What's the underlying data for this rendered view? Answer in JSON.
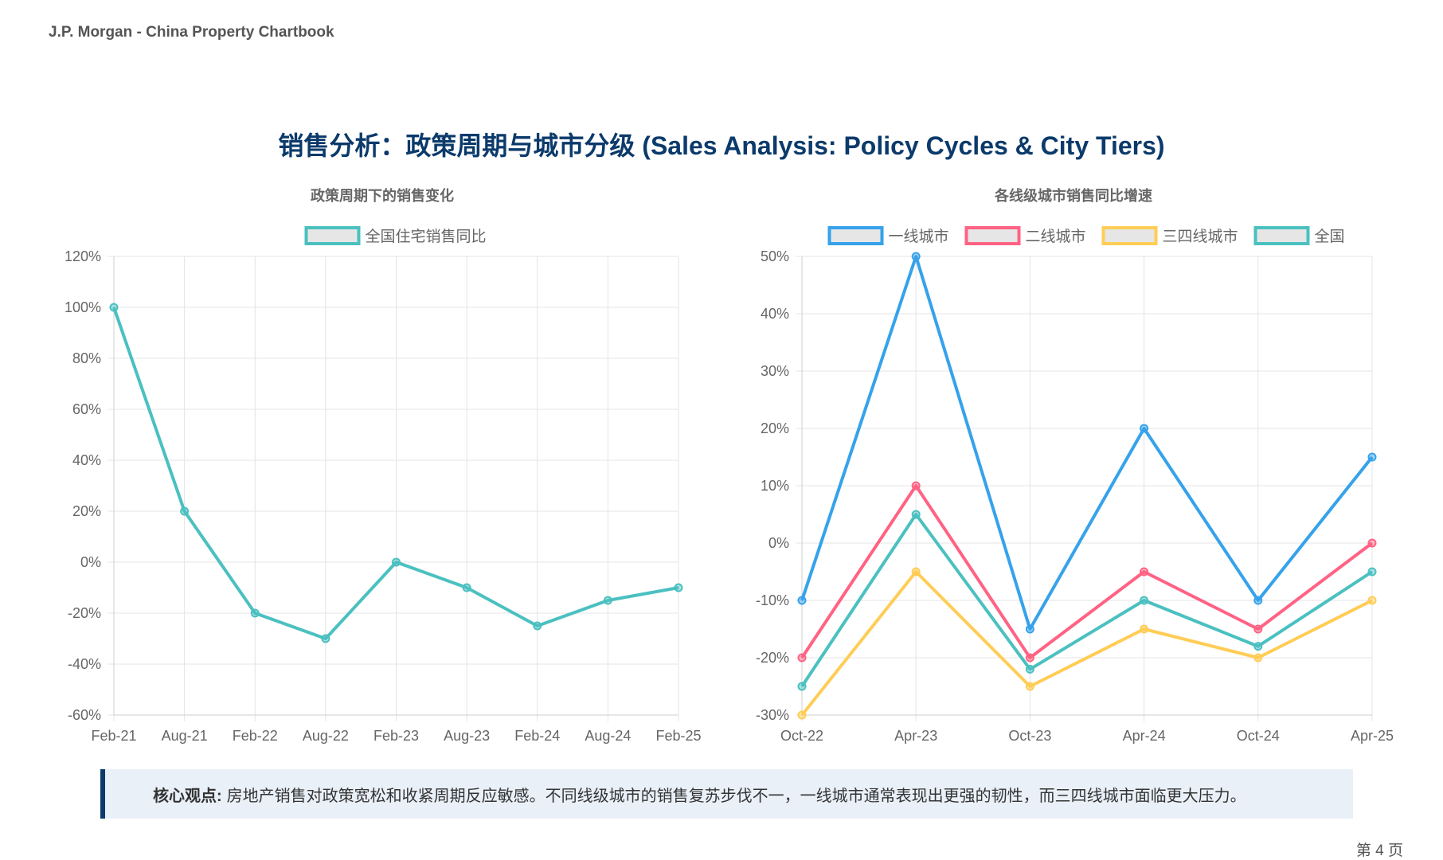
{
  "header": {
    "brand": "J.P. Morgan - China Property Chartbook"
  },
  "main_title": "销售分析：政策周期与城市分级 (Sales Analysis: Policy Cycles & City Tiers)",
  "chart_data": [
    {
      "type": "line",
      "title": "政策周期下的销售变化",
      "categories": [
        "Feb-21",
        "Aug-21",
        "Feb-22",
        "Aug-22",
        "Feb-23",
        "Aug-23",
        "Feb-24",
        "Aug-24",
        "Feb-25"
      ],
      "series": [
        {
          "name": "全国住宅销售同比",
          "color": "#4bc0c0",
          "values": [
            100,
            20,
            -20,
            -30,
            0,
            -10,
            -25,
            -15,
            -10
          ]
        }
      ],
      "ylim": [
        -60,
        120
      ],
      "yticks": [
        120,
        100,
        80,
        60,
        40,
        20,
        0,
        -20,
        -40,
        -60
      ],
      "y_unit": "%",
      "grid": true,
      "legend": "top"
    },
    {
      "type": "line",
      "title": "各线级城市销售同比增速",
      "categories": [
        "Oct-22",
        "Apr-23",
        "Oct-23",
        "Apr-24",
        "Oct-24",
        "Apr-25"
      ],
      "series": [
        {
          "name": "一线城市",
          "color": "#36a2eb",
          "values": [
            -10,
            50,
            -15,
            20,
            -10,
            15
          ]
        },
        {
          "name": "二线城市",
          "color": "#ff6384",
          "values": [
            -20,
            10,
            -20,
            -5,
            -15,
            0
          ]
        },
        {
          "name": "三四线城市",
          "color": "#ffcd56",
          "values": [
            -30,
            -5,
            -25,
            -15,
            -20,
            -10
          ]
        },
        {
          "name": "全国",
          "color": "#4bc0c0",
          "values": [
            -25,
            5,
            -22,
            -10,
            -18,
            -5
          ]
        }
      ],
      "ylim": [
        -30,
        50
      ],
      "yticks": [
        50,
        40,
        30,
        20,
        10,
        0,
        -10,
        -20,
        -30
      ],
      "y_unit": "%",
      "grid": true,
      "legend": "top"
    }
  ],
  "callout": {
    "label": "核心观点:",
    "text": "房地产销售对政策宽松和收紧周期反应敏感。不同线级城市的销售复苏步伐不一，一线城市通常表现出更强的韧性，而三四线城市面临更大压力。"
  },
  "footer": {
    "page": "第 4 页"
  }
}
